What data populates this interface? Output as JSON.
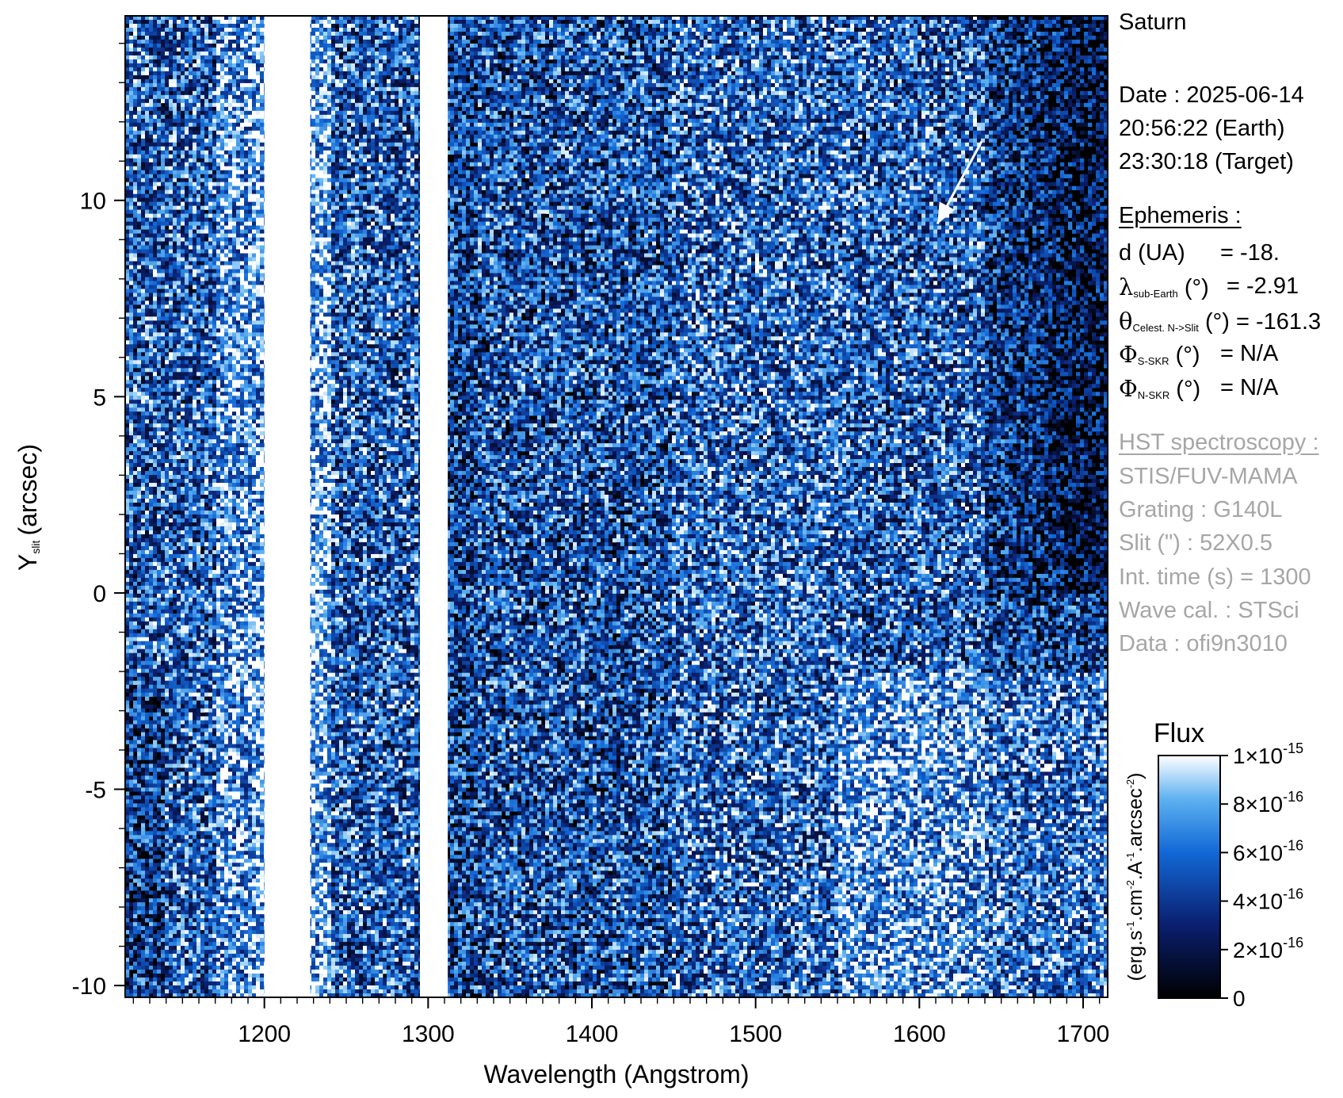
{
  "chart_data": {
    "type": "heatmap",
    "xlabel": "Wavelength (Angstrom)",
    "ylabel": "Y",
    "ylabel_sub": "slit",
    "ylabel_unit": "(arcsec)",
    "xlim": [
      1115,
      1715
    ],
    "ylim": [
      -10.3,
      14.7
    ],
    "xticks": [
      1200,
      1300,
      1400,
      1500,
      1600,
      1700
    ],
    "yticks": [
      -10,
      -5,
      0,
      5,
      10
    ],
    "ytick_labels": [
      "-10",
      "-5",
      "0",
      "5",
      "10"
    ],
    "saturated_bands_angstrom": [
      [
        1200,
        1228
      ],
      [
        1295,
        1312
      ]
    ],
    "colorbar": {
      "title": "Flux",
      "unit_label": "(erg.s-1.cm-2.A-1.arcsec-2)",
      "range": [
        0,
        1e-15
      ],
      "tick_values": [
        0,
        2e-16,
        4e-16,
        6e-16,
        8e-16,
        1e-15
      ],
      "colors": [
        "#000000",
        "#0a1f6e",
        "#1268d6",
        "#5db1f0",
        "#ffffff"
      ]
    },
    "arrow": {
      "from": [
        1638,
        11.5
      ],
      "to": [
        1611,
        9.4
      ],
      "color": "#ffffff"
    }
  },
  "colorbar_ticks": [
    {
      "mant": "0",
      "exp": ""
    },
    {
      "mant": "2×10",
      "exp": "-16"
    },
    {
      "mant": "4×10",
      "exp": "-16"
    },
    {
      "mant": "6×10",
      "exp": "-16"
    },
    {
      "mant": "8×10",
      "exp": "-16"
    },
    {
      "mant": "1×10",
      "exp": "-15"
    }
  ],
  "info": {
    "target": "Saturn",
    "date_line": "Date : 2025-06-14",
    "earth_time": "20:56:22 (Earth)",
    "target_time": "23:30:18 (Target)",
    "ephemeris_title": "Ephemeris :",
    "d_label": "d (UA)",
    "d_value": "= -18.",
    "lambda_sub": "sub-Earth",
    "lambda_unit": "(°)",
    "lambda_value": "= -2.91",
    "theta_sub": "Celest. N->Slit",
    "theta_unit": "(°)",
    "theta_value": "= -161.3",
    "phi_s_sub": "S-SKR",
    "phi_s_unit": "(°)",
    "phi_s_value": "= N/A",
    "phi_n_sub": "N-SKR",
    "phi_n_unit": "(°)",
    "phi_n_value": "= N/A",
    "hst_title": "HST spectroscopy :",
    "instrument": "STIS/FUV-MAMA",
    "grating": "Grating : G140L",
    "slit": "Slit (\") : 52X0.5",
    "int_time": "Int. time (s) = 1300",
    "wave_cal": "Wave cal. : STSci",
    "data_id": "Data : ofi9n3010"
  }
}
